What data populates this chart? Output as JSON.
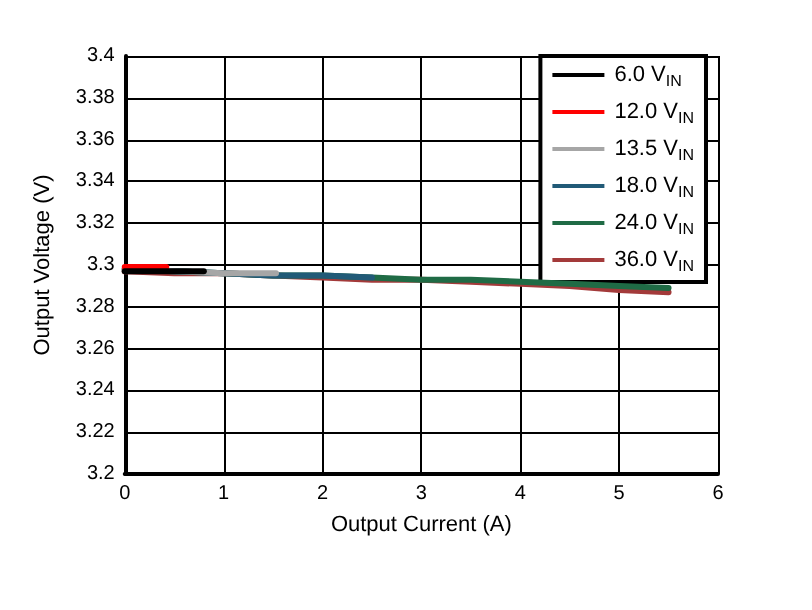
{
  "chart_data": {
    "type": "line",
    "xlabel": "Output Current (A)",
    "ylabel": "Output Voltage (V)",
    "xlim": [
      0,
      6
    ],
    "xticks": [
      0,
      1,
      2,
      3,
      4,
      5,
      6
    ],
    "ylim": [
      3.2,
      3.4
    ],
    "yticks": [
      3.2,
      3.22,
      3.24,
      3.26,
      3.28,
      3.3,
      3.32,
      3.34,
      3.36,
      3.38,
      3.4
    ],
    "grid": true,
    "legend": "top right",
    "marker": "none",
    "line_style": "solid",
    "series": [
      {
        "name": "6.0 V$_{IN}$",
        "color": "#000000",
        "x": [
          0,
          0.4,
          0.8
        ],
        "values": [
          3.297,
          3.297,
          3.297
        ]
      },
      {
        "name": "12.0 V$_{IN}$",
        "color": "#ff0000",
        "x": [
          0,
          0.42
        ],
        "values": [
          3.299,
          3.299
        ]
      },
      {
        "name": "13.5 V$_{IN}$",
        "color": "#a6a6a6",
        "x": [
          0,
          0.5,
          1,
          1.53
        ],
        "values": [
          3.298,
          3.297,
          3.296,
          3.296
        ]
      },
      {
        "name": "18.0 V$_{IN}$",
        "color": "#215a77",
        "x": [
          0,
          0.5,
          1,
          1.5,
          2,
          2.5
        ],
        "values": [
          3.298,
          3.297,
          3.296,
          3.295,
          3.295,
          3.294
        ]
      },
      {
        "name": "24.0 V$_{IN}$",
        "color": "#1f6b45",
        "x": [
          0,
          0.5,
          1,
          1.5,
          2,
          2.5,
          3,
          3.5,
          4,
          4.5,
          5,
          5.5
        ],
        "values": [
          3.298,
          3.297,
          3.296,
          3.295,
          3.295,
          3.294,
          3.293,
          3.293,
          3.292,
          3.291,
          3.29,
          3.289
        ]
      },
      {
        "name": "36.0 V$_{IN}$",
        "color": "#a33a3a",
        "x": [
          0,
          0.5,
          1,
          1.5,
          2,
          2.5,
          3,
          3.5,
          4,
          4.5,
          5,
          5.5
        ],
        "values": [
          3.297,
          3.296,
          3.296,
          3.295,
          3.294,
          3.293,
          3.293,
          3.292,
          3.291,
          3.29,
          3.288,
          3.287
        ]
      }
    ]
  }
}
